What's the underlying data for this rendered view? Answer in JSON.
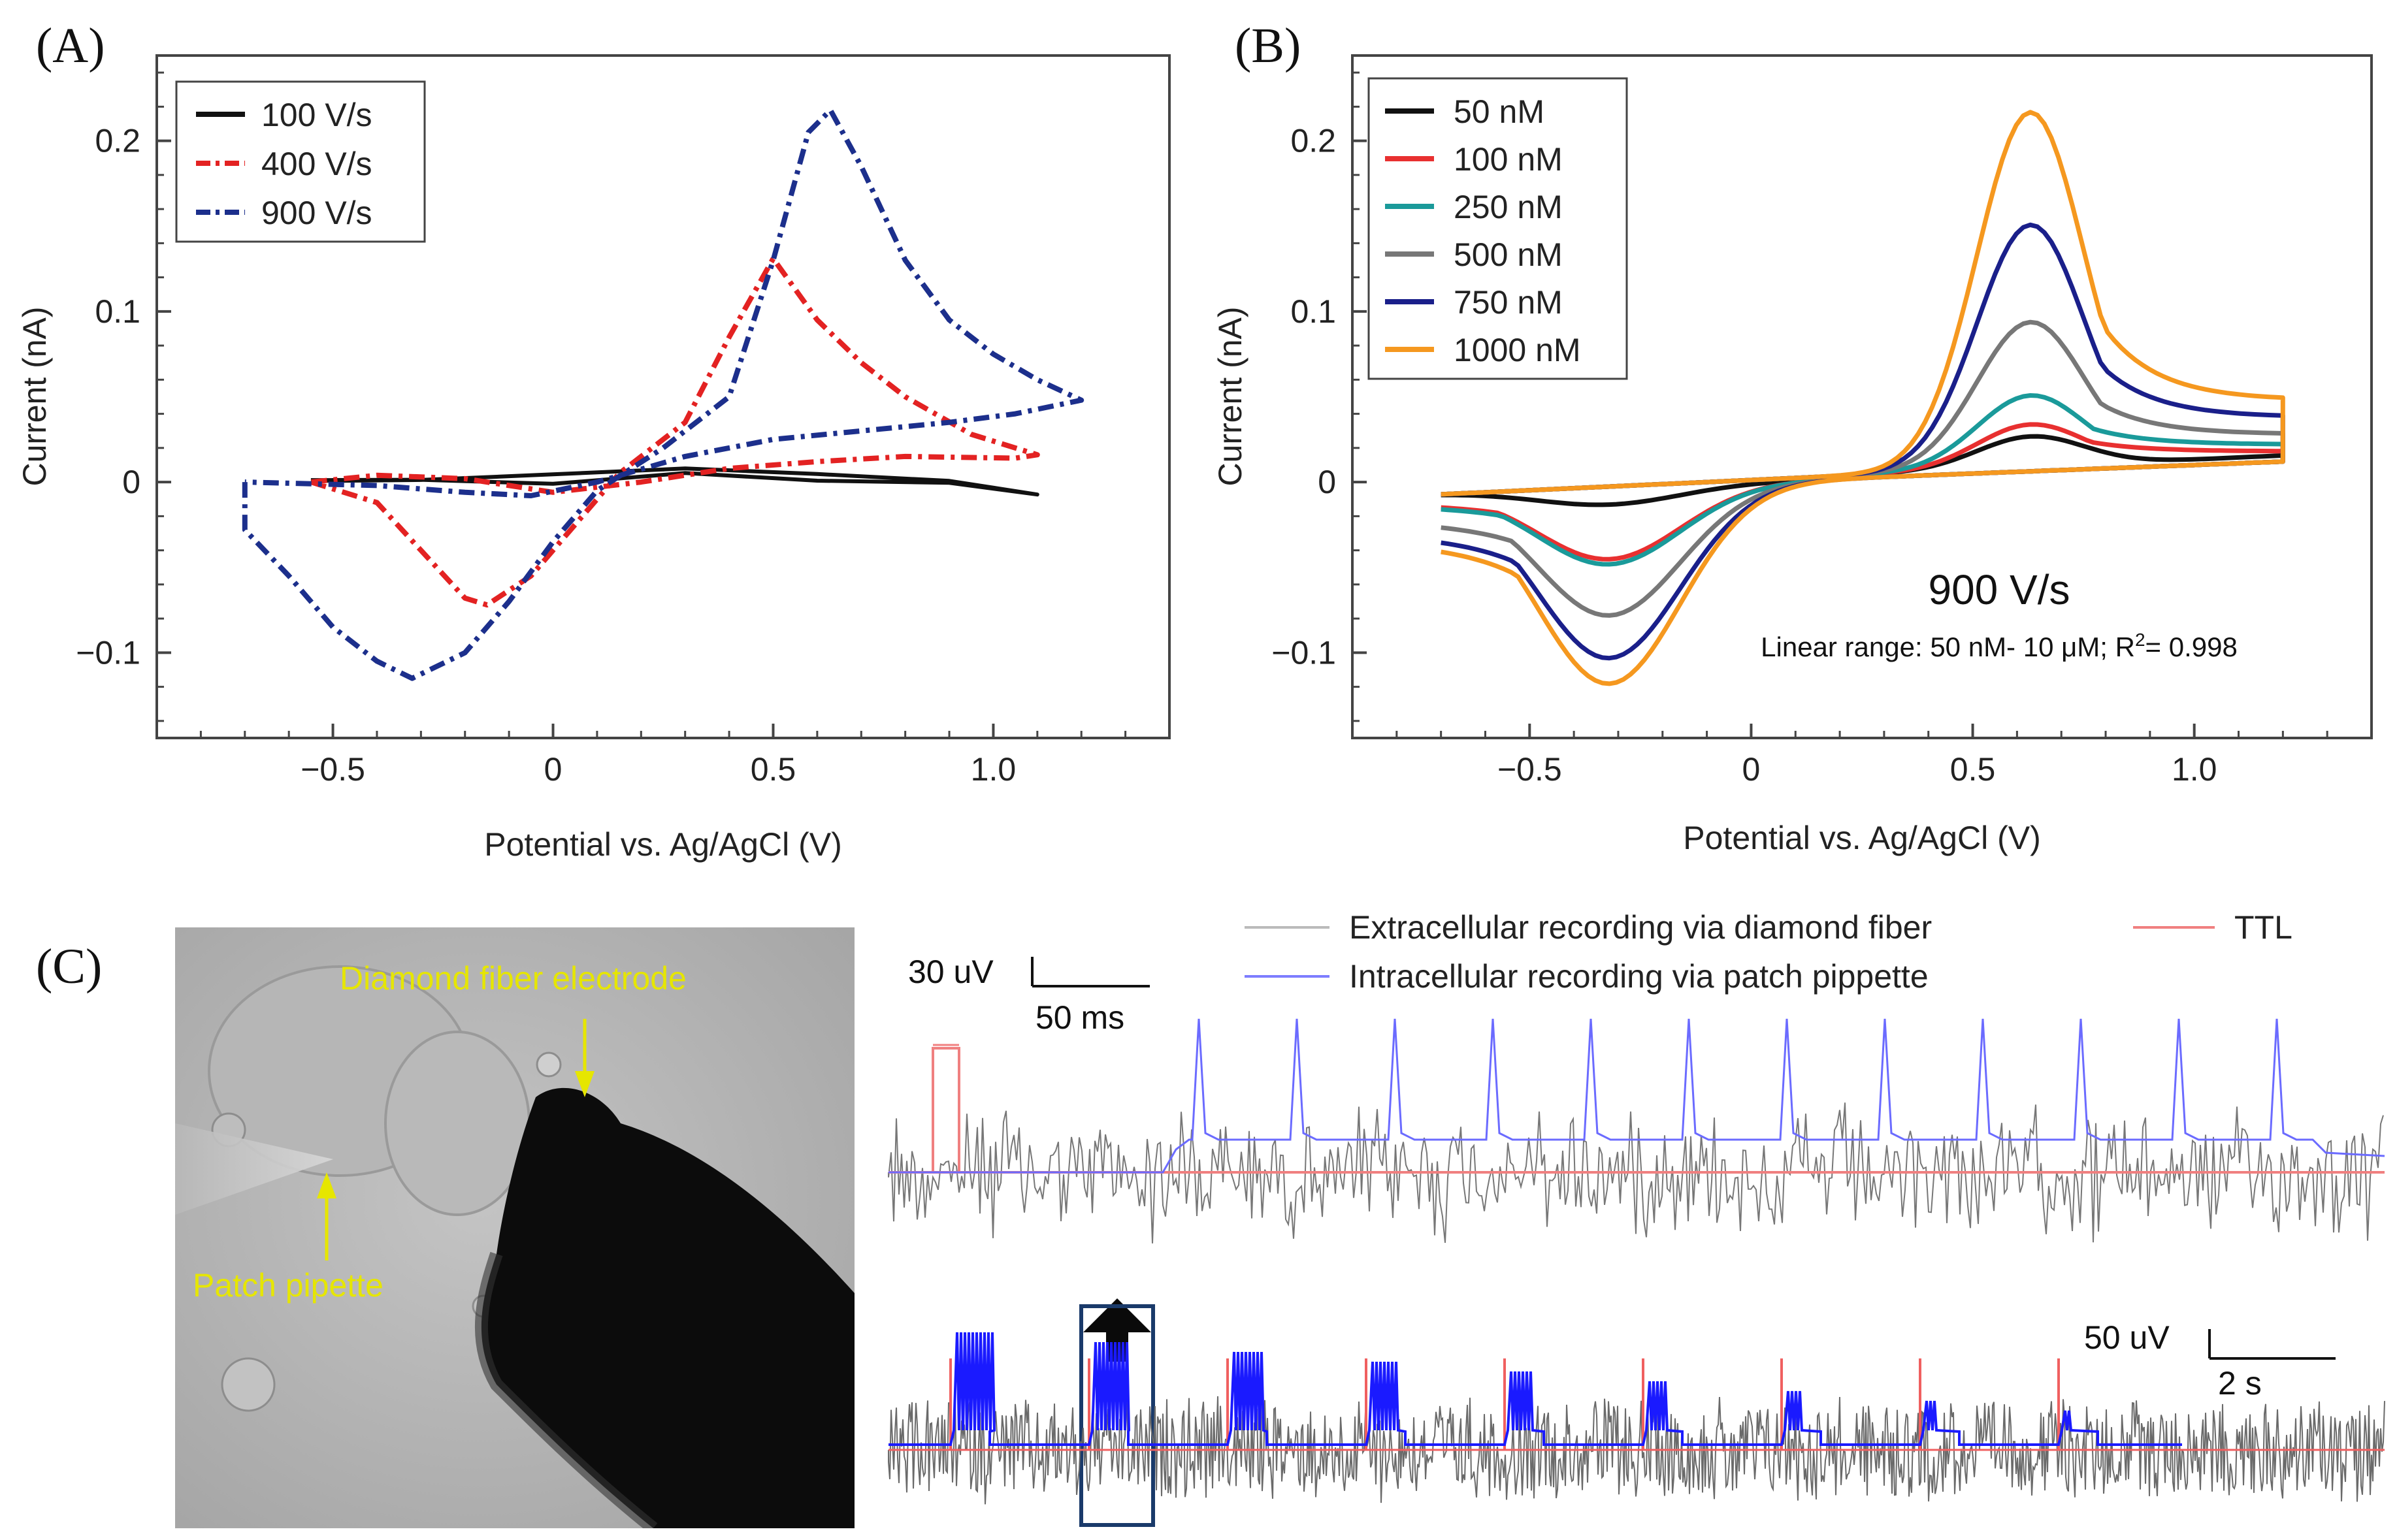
{
  "chart_data": [
    {
      "panel": "(A)",
      "type": "line",
      "xlabel": "Potential vs. Ag/AgCl (V)",
      "ylabel": "Current (nA)",
      "xlim": [
        -0.9,
        1.4
      ],
      "ylim": [
        -0.15,
        0.25
      ],
      "xticks": [
        -0.5,
        0,
        0.5,
        1.0
      ],
      "xtick_labels": [
        "−0.5",
        "0",
        "0.5",
        "1.0"
      ],
      "yticks": [
        -0.1,
        0,
        0.1,
        0.2
      ],
      "ytick_labels": [
        "−0.1",
        "0",
        "0.1",
        "0.2"
      ],
      "legend_position": "top-left",
      "series": [
        {
          "name": "100 V/s",
          "color": "#111111",
          "style": "solid-noisy",
          "points": [
            [
              -0.55,
              0.0
            ],
            [
              -0.3,
              0.002
            ],
            [
              0.0,
              0.004
            ],
            [
              0.3,
              0.006
            ],
            [
              0.6,
              0.004
            ],
            [
              0.9,
              0.0
            ],
            [
              1.1,
              -0.006
            ],
            [
              0.9,
              -0.002
            ],
            [
              0.6,
              0.0
            ],
            [
              0.3,
              0.004
            ],
            [
              0.0,
              -0.002
            ],
            [
              -0.3,
              0.002
            ],
            [
              -0.55,
              0.0
            ]
          ]
        },
        {
          "name": "400 V/s",
          "color": "#e32222",
          "style": "dash-dot",
          "points": [
            [
              -0.55,
              0.0
            ],
            [
              -0.4,
              -0.012
            ],
            [
              -0.3,
              -0.04
            ],
            [
              -0.2,
              -0.068
            ],
            [
              -0.15,
              -0.072
            ],
            [
              -0.05,
              -0.055
            ],
            [
              0.05,
              -0.025
            ],
            [
              0.15,
              0.005
            ],
            [
              0.3,
              0.035
            ],
            [
              0.4,
              0.085
            ],
            [
              0.5,
              0.131
            ],
            [
              0.6,
              0.095
            ],
            [
              0.7,
              0.07
            ],
            [
              0.8,
              0.05
            ],
            [
              0.95,
              0.028
            ],
            [
              1.1,
              0.016
            ],
            [
              1.05,
              0.014
            ],
            [
              0.8,
              0.015
            ],
            [
              0.6,
              0.012
            ],
            [
              0.4,
              0.008
            ],
            [
              0.2,
              0.0
            ],
            [
              0.0,
              -0.006
            ],
            [
              -0.2,
              0.002
            ],
            [
              -0.4,
              0.004
            ],
            [
              -0.55,
              0.0
            ]
          ]
        },
        {
          "name": "900 V/s",
          "color": "#1c2f8c",
          "style": "dash-dot",
          "points": [
            [
              -0.7,
              0.0
            ],
            [
              -0.7,
              -0.028
            ],
            [
              -0.6,
              -0.055
            ],
            [
              -0.5,
              -0.085
            ],
            [
              -0.4,
              -0.105
            ],
            [
              -0.32,
              -0.115
            ],
            [
              -0.2,
              -0.1
            ],
            [
              -0.1,
              -0.07
            ],
            [
              0.0,
              -0.035
            ],
            [
              0.1,
              -0.005
            ],
            [
              0.25,
              0.02
            ],
            [
              0.4,
              0.05
            ],
            [
              0.5,
              0.13
            ],
            [
              0.58,
              0.205
            ],
            [
              0.63,
              0.218
            ],
            [
              0.7,
              0.185
            ],
            [
              0.8,
              0.13
            ],
            [
              0.9,
              0.095
            ],
            [
              1.0,
              0.075
            ],
            [
              1.1,
              0.06
            ],
            [
              1.2,
              0.048
            ],
            [
              1.05,
              0.04
            ],
            [
              0.9,
              0.035
            ],
            [
              0.7,
              0.03
            ],
            [
              0.5,
              0.025
            ],
            [
              0.3,
              0.015
            ],
            [
              0.1,
              0.0
            ],
            [
              -0.05,
              -0.008
            ],
            [
              -0.2,
              -0.006
            ],
            [
              -0.4,
              -0.002
            ],
            [
              -0.7,
              0.0
            ]
          ]
        }
      ]
    },
    {
      "panel": "(B)",
      "type": "line",
      "xlabel": "Potential vs. Ag/AgCl (V)",
      "ylabel": "Current (nA)",
      "xlim": [
        -0.9,
        1.4
      ],
      "ylim": [
        -0.15,
        0.25
      ],
      "xticks": [
        -0.5,
        0,
        0.5,
        1.0
      ],
      "xtick_labels": [
        "−0.5",
        "0",
        "0.5",
        "1.0"
      ],
      "yticks": [
        -0.1,
        0,
        0.1,
        0.2
      ],
      "ytick_labels": [
        "−0.1",
        "0",
        "0.1",
        "0.2"
      ],
      "legend_position": "top-left",
      "annotation_main": "900 V/s",
      "annotation_sub_prefix": "Linear range: 50 nM- 10 μM; R",
      "annotation_sub_sup": "2",
      "annotation_sub_suffix": "= 0.998",
      "series": [
        {
          "name": "50 nM",
          "color": "#111111",
          "peak": 0.028,
          "valley": -0.01,
          "end": 0.005
        },
        {
          "name": "100 nM",
          "color": "#e83030",
          "peak": 0.035,
          "valley": -0.042,
          "end": 0.018
        },
        {
          "name": "250 nM",
          "color": "#1a9a9a",
          "peak": 0.052,
          "valley": -0.045,
          "end": 0.022
        },
        {
          "name": "500 nM",
          "color": "#777777",
          "peak": 0.095,
          "valley": -0.075,
          "end": 0.028
        },
        {
          "name": "750 nM",
          "color": "#1a1f8a",
          "peak": 0.152,
          "valley": -0.1,
          "end": 0.038
        },
        {
          "name": "1000 nM",
          "color": "#f5981f",
          "peak": 0.218,
          "valley": -0.115,
          "end": 0.048
        }
      ]
    },
    {
      "panel": "(C)",
      "type": "line",
      "micrograph_labels": {
        "electrode": "Diamond fiber electrode",
        "pipette": "Patch pipette"
      },
      "legend": [
        {
          "name": "Extracellular recording via diamond fiber",
          "color": "#bbbbbb"
        },
        {
          "name": "TTL",
          "color": "#f08080"
        },
        {
          "name": "Intracellular recording via patch pippette",
          "color": "#7d7dff"
        }
      ],
      "top_scale": {
        "amplitude": "30 uV",
        "time": "50 ms"
      },
      "bottom_scale": {
        "amplitude": "50 uV",
        "time": "2 s"
      },
      "top_spike_count": 12,
      "bottom_burst_count": 9
    }
  ]
}
